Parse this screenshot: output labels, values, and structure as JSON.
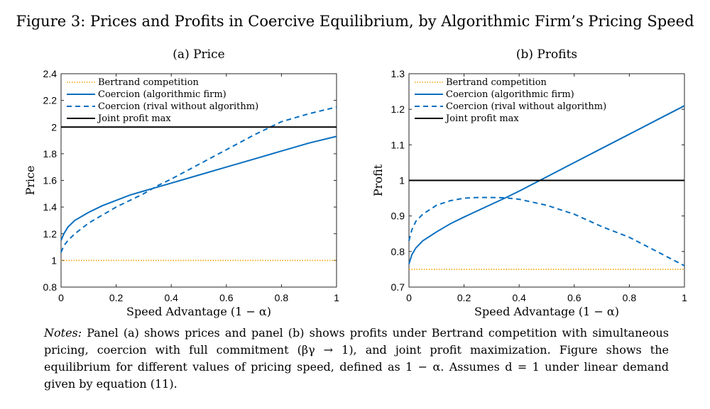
{
  "figure_title": "Figure 3: Prices and Profits in Coercive Equilibrium, by Algorithmic Firm’s Pricing Speed",
  "colors": {
    "bertrand": "#f0a30a",
    "coercion_blue": "#0a6fbf",
    "joint": "#000000"
  },
  "legend": {
    "bertrand": "Bertrand competition",
    "algo": "Coercion (algorithmic firm)",
    "rival": "Coercion (rival without algorithm)",
    "joint": "Joint profit max"
  },
  "notes": {
    "lead": "Notes:",
    "text": " Panel (a) shows prices and panel (b) shows profits under Bertrand competition with simultaneous pricing, coercion with full commitment (βγ → 1), and joint profit maximization. Figure shows the equilibrium for different values of pricing speed, defined as 1 − α. Assumes d = 1 under linear demand given by equation (11)."
  },
  "chart_data": [
    {
      "type": "line",
      "title": "(a) Price",
      "xlabel": "Speed Advantage (1 − α)",
      "ylabel": "Price",
      "xlim": [
        0,
        1
      ],
      "ylim": [
        0.8,
        2.4
      ],
      "xticks": [
        0,
        0.2,
        0.4,
        0.6,
        0.8,
        1
      ],
      "xtick_labels": [
        "0",
        "0.2",
        "0.4",
        "0.6",
        "0.8",
        "1"
      ],
      "yticks": [
        0.8,
        1,
        1.2,
        1.4,
        1.6,
        1.8,
        2,
        2.2,
        2.4
      ],
      "ytick_labels": [
        "0.8",
        "1",
        "1.2",
        "1.4",
        "1.6",
        "1.8",
        "2",
        "2.2",
        "2.4"
      ],
      "legend_position": "top-left",
      "x": [
        0,
        0.01,
        0.025,
        0.05,
        0.1,
        0.15,
        0.2,
        0.25,
        0.3,
        0.35,
        0.4,
        0.5,
        0.6,
        0.7,
        0.8,
        0.9,
        1
      ],
      "series": [
        {
          "name": "Bertrand competition",
          "key": "bertrand",
          "style": "dotted",
          "values": [
            1,
            1,
            1,
            1,
            1,
            1,
            1,
            1,
            1,
            1,
            1,
            1,
            1,
            1,
            1,
            1,
            1
          ]
        },
        {
          "name": "Coercion (algorithmic firm)",
          "key": "algo",
          "style": "solid",
          "values": [
            1.15,
            1.2,
            1.25,
            1.3,
            1.36,
            1.41,
            1.45,
            1.49,
            1.52,
            1.55,
            1.58,
            1.64,
            1.7,
            1.76,
            1.82,
            1.88,
            1.93
          ]
        },
        {
          "name": "Coercion (rival without algorithm)",
          "key": "rival",
          "style": "dashed",
          "values": [
            1.06,
            1.11,
            1.15,
            1.2,
            1.28,
            1.34,
            1.4,
            1.45,
            1.5,
            1.56,
            1.61,
            1.72,
            1.83,
            1.94,
            2.04,
            2.1,
            2.15
          ]
        },
        {
          "name": "Joint profit max",
          "key": "joint",
          "style": "solid",
          "values": [
            2,
            2,
            2,
            2,
            2,
            2,
            2,
            2,
            2,
            2,
            2,
            2,
            2,
            2,
            2,
            2,
            2
          ]
        }
      ]
    },
    {
      "type": "line",
      "title": "(b) Profits",
      "xlabel": "Speed Advantage (1 − α)",
      "ylabel": "Profit",
      "xlim": [
        0,
        1
      ],
      "ylim": [
        0.7,
        1.3
      ],
      "xticks": [
        0,
        0.2,
        0.4,
        0.6,
        0.8,
        1
      ],
      "xtick_labels": [
        "0",
        "0.2",
        "0.4",
        "0.6",
        "0.8",
        "1"
      ],
      "yticks": [
        0.7,
        0.8,
        0.9,
        1,
        1.1,
        1.2,
        1.3
      ],
      "ytick_labels": [
        "0.7",
        "0.8",
        "0.9",
        "1",
        "1.1",
        "1.2",
        "1.3"
      ],
      "legend_position": "top-left",
      "x": [
        0,
        0.01,
        0.025,
        0.05,
        0.1,
        0.15,
        0.2,
        0.25,
        0.3,
        0.35,
        0.4,
        0.5,
        0.6,
        0.7,
        0.8,
        0.9,
        1
      ],
      "series": [
        {
          "name": "Bertrand competition",
          "key": "bertrand",
          "style": "dotted",
          "values": [
            0.75,
            0.75,
            0.75,
            0.75,
            0.75,
            0.75,
            0.75,
            0.75,
            0.75,
            0.75,
            0.75,
            0.75,
            0.75,
            0.75,
            0.75,
            0.75,
            0.75
          ]
        },
        {
          "name": "Coercion (algorithmic firm)",
          "key": "algo",
          "style": "solid",
          "values": [
            0.765,
            0.79,
            0.81,
            0.83,
            0.855,
            0.878,
            0.897,
            0.915,
            0.933,
            0.951,
            0.97,
            1.01,
            1.05,
            1.09,
            1.13,
            1.17,
            1.21
          ]
        },
        {
          "name": "Coercion (rival without algorithm)",
          "key": "rival",
          "style": "dashed",
          "values": [
            0.83,
            0.86,
            0.885,
            0.905,
            0.93,
            0.943,
            0.95,
            0.952,
            0.952,
            0.951,
            0.947,
            0.93,
            0.905,
            0.87,
            0.84,
            0.8,
            0.76
          ]
        },
        {
          "name": "Joint profit max",
          "key": "joint",
          "style": "solid",
          "values": [
            1,
            1,
            1,
            1,
            1,
            1,
            1,
            1,
            1,
            1,
            1,
            1,
            1,
            1,
            1,
            1,
            1
          ]
        }
      ]
    }
  ]
}
